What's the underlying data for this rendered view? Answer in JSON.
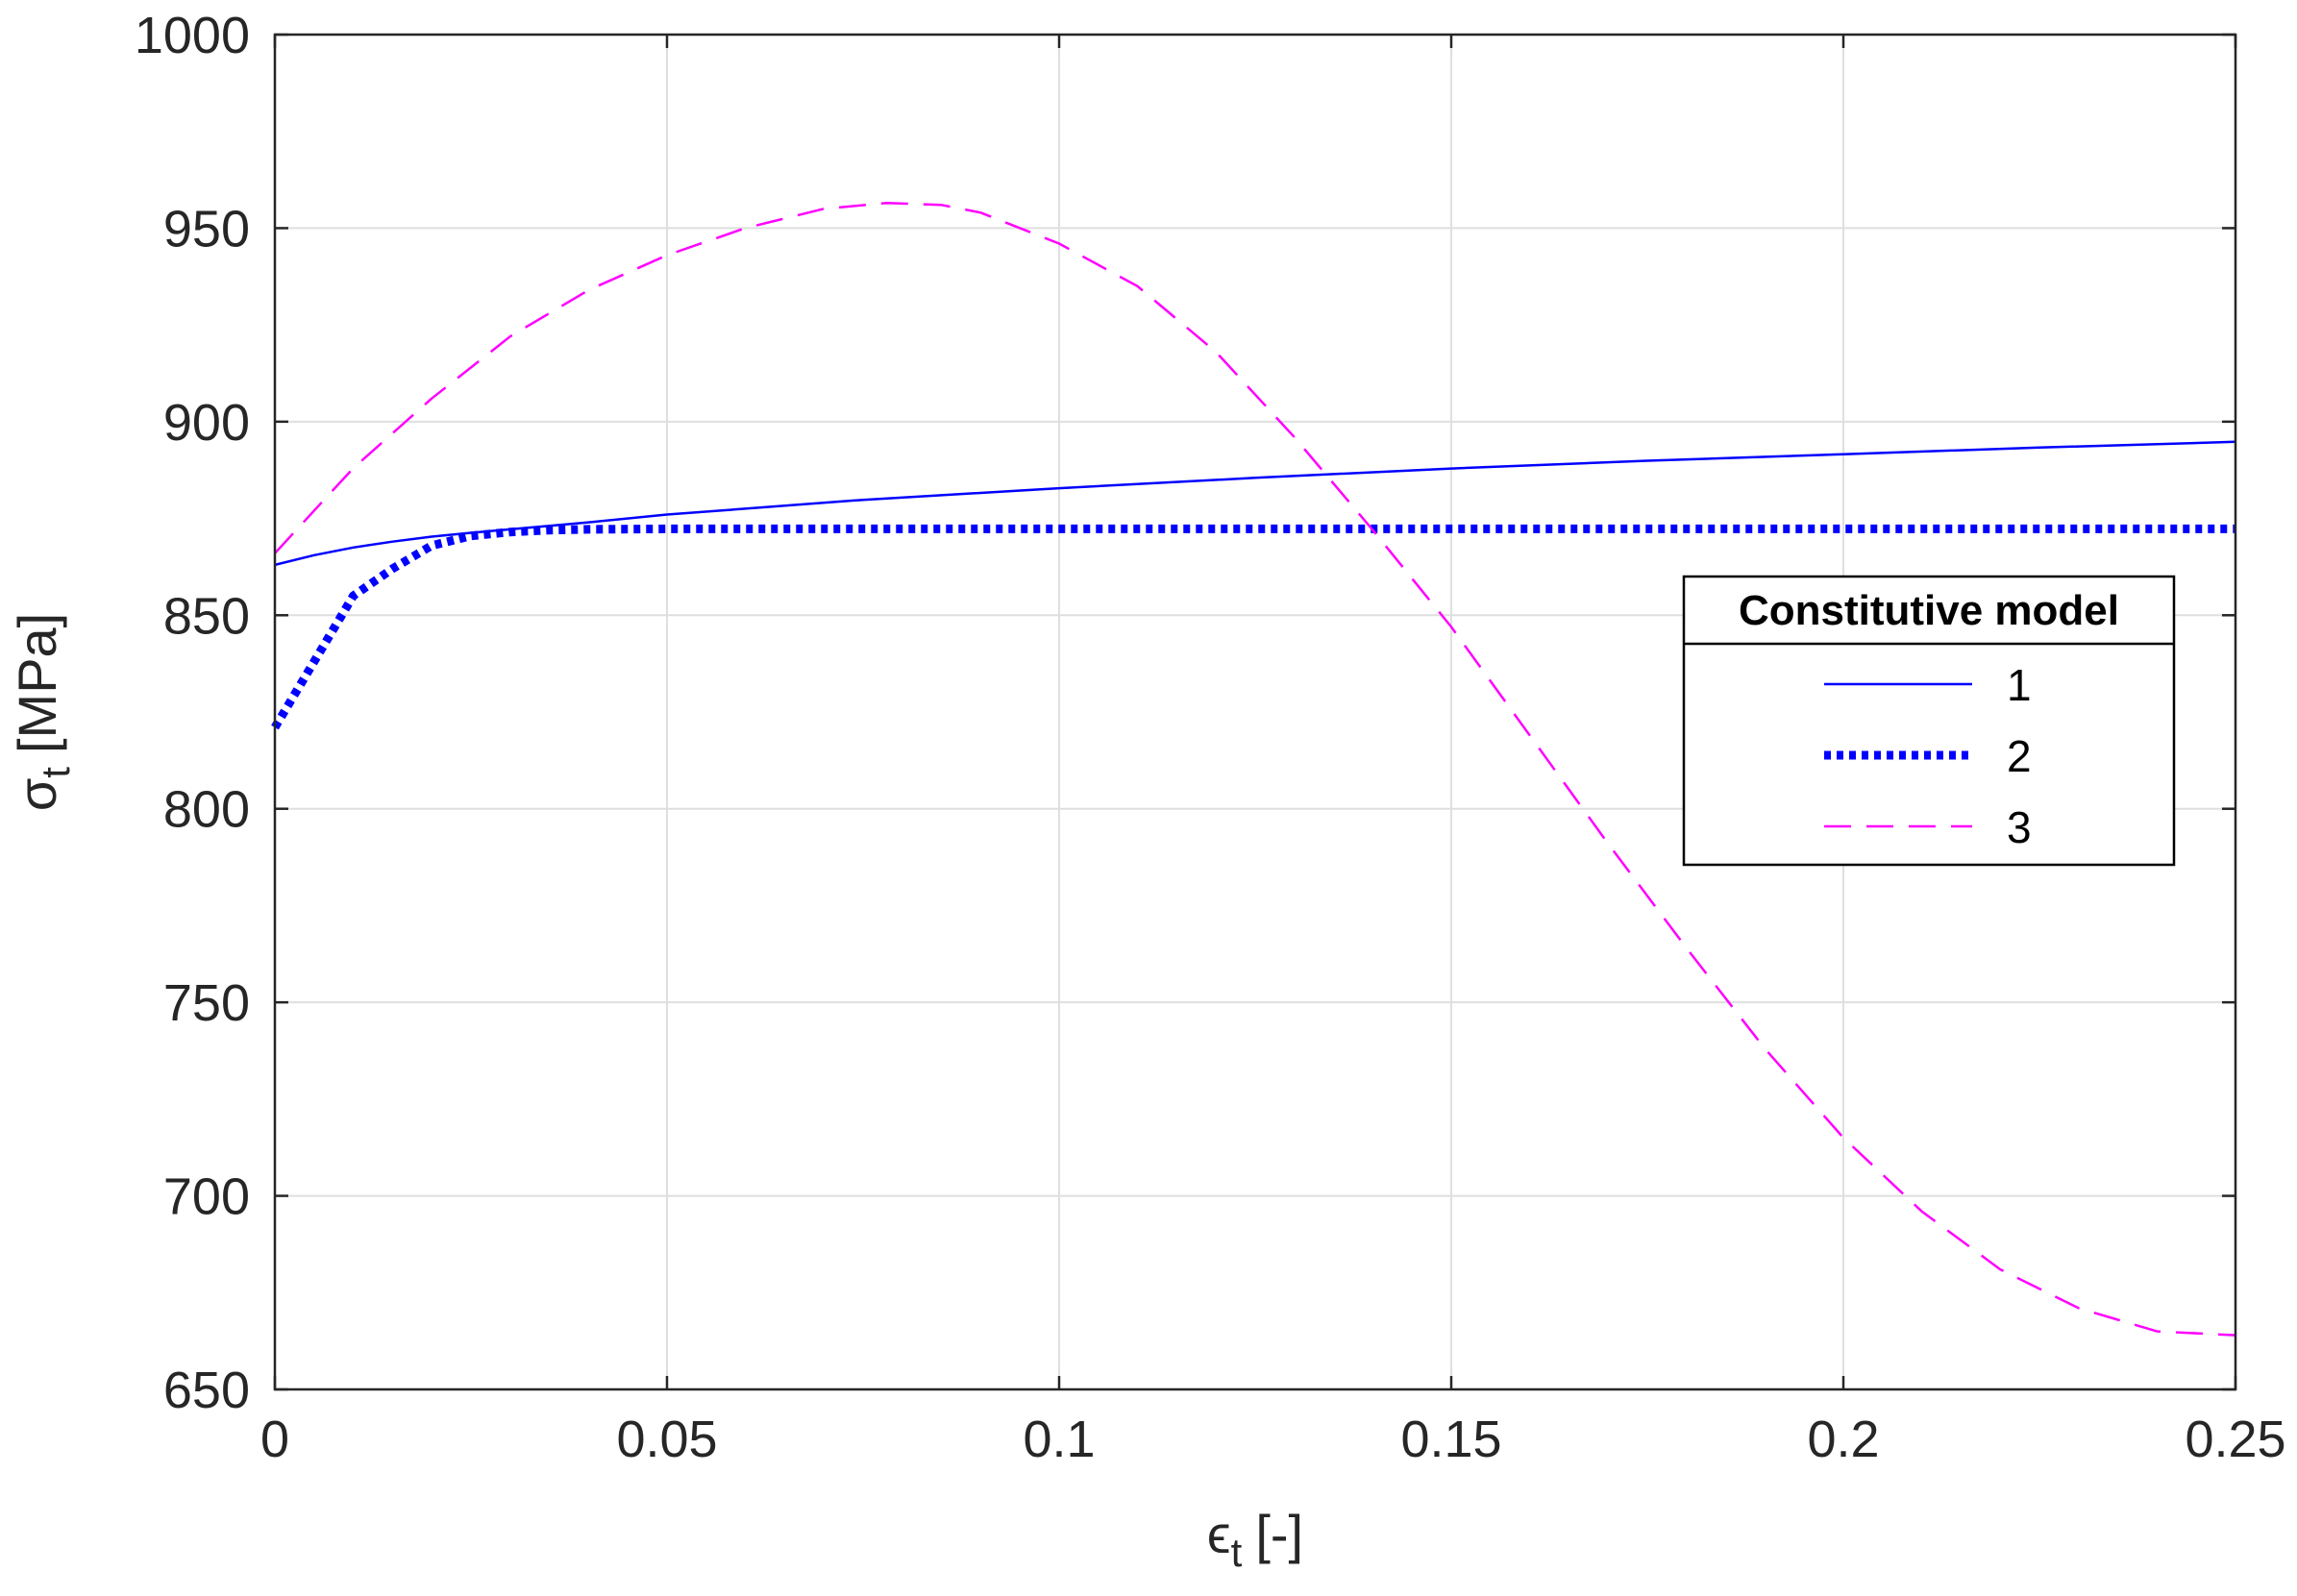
{
  "chart_data": {
    "type": "line",
    "title": "",
    "xlabel": "[-]",
    "xlabel_symbol": "ϵ",
    "xlabel_subscript": "t",
    "ylabel": "[MPa]",
    "ylabel_symbol": "σ",
    "ylabel_subscript": "t",
    "xlim": [
      0,
      0.25
    ],
    "ylim": [
      650,
      1000
    ],
    "xticks": [
      0,
      0.05,
      0.1,
      0.15,
      0.2,
      0.25
    ],
    "xtick_labels": [
      "0",
      "0.05",
      "0.1",
      "0.15",
      "0.2",
      "0.25"
    ],
    "yticks": [
      650,
      700,
      750,
      800,
      850,
      900,
      950,
      1000
    ],
    "ytick_labels": [
      "650",
      "700",
      "750",
      "800",
      "850",
      "900",
      "950",
      "1000"
    ],
    "grid": true,
    "legend": {
      "title": "Constitutive model",
      "placement": "right"
    },
    "series": [
      {
        "name": "1",
        "color": "#0000ff",
        "style": "solid",
        "x": [
          0,
          0.005,
          0.01,
          0.015,
          0.02,
          0.025,
          0.03,
          0.04,
          0.05,
          0.075,
          0.1,
          0.125,
          0.15,
          0.175,
          0.2,
          0.225,
          0.25
        ],
        "y": [
          863,
          865.5,
          867.5,
          869,
          870.3,
          871.3,
          872.2,
          874,
          876,
          879.8,
          882.8,
          885.5,
          887.9,
          889.9,
          891.6,
          893.3,
          894.8
        ]
      },
      {
        "name": "2",
        "color": "#0000ff",
        "style": "dotted",
        "x": [
          0,
          0.005,
          0.01,
          0.015,
          0.02,
          0.025,
          0.03,
          0.035,
          0.04,
          0.05,
          0.1,
          0.15,
          0.2,
          0.25
        ],
        "y": [
          821,
          838,
          855,
          862,
          868,
          870.5,
          871.5,
          872,
          872.2,
          872.3,
          872.3,
          872.3,
          872.3,
          872.3
        ]
      },
      {
        "name": "3",
        "color": "#ff00ff",
        "style": "dashed",
        "x": [
          0,
          0.01,
          0.02,
          0.03,
          0.04,
          0.05,
          0.06,
          0.07,
          0.078,
          0.085,
          0.09,
          0.1,
          0.11,
          0.12,
          0.13,
          0.14,
          0.15,
          0.16,
          0.17,
          0.18,
          0.19,
          0.2,
          0.21,
          0.22,
          0.23,
          0.24,
          0.25
        ],
        "y": [
          866,
          888,
          906,
          922,
          934,
          943,
          950,
          955,
          956.5,
          956,
          954,
          946,
          935,
          918,
          896,
          872,
          847,
          819,
          791,
          764,
          738,
          715,
          696,
          681,
          671,
          665,
          664
        ]
      }
    ]
  }
}
